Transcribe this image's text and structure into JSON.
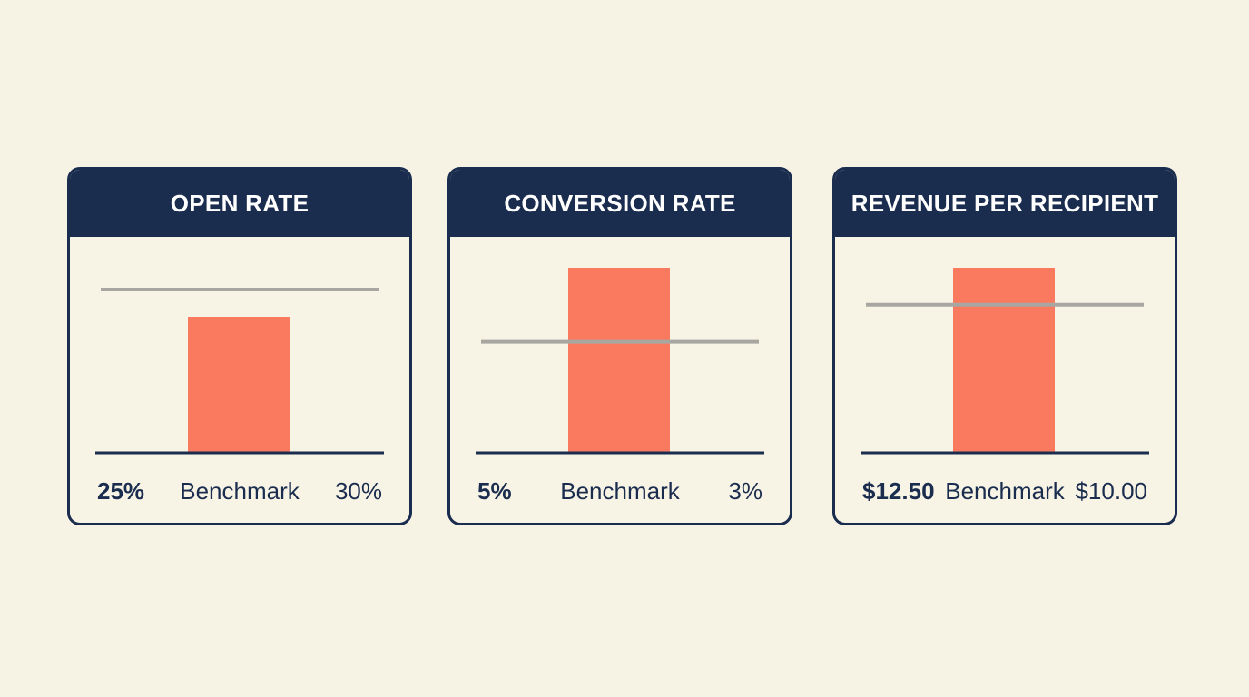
{
  "colors": {
    "background": "#f7f3e4",
    "header": "#1b2d4f",
    "bar": "#fa7a60",
    "benchmark_line": "#a7a6a1",
    "baseline": "#1b2d4f"
  },
  "chart_data": [
    {
      "type": "bar",
      "title": "OPEN RATE",
      "categories": [
        ""
      ],
      "values": [
        25
      ],
      "benchmark": 30,
      "ylim": [
        0,
        34
      ],
      "actual_label": "25%",
      "benchmark_label": "Benchmark",
      "benchmark_value_label": "30%"
    },
    {
      "type": "bar",
      "title": "CONVERSION RATE",
      "categories": [
        ""
      ],
      "values": [
        5
      ],
      "benchmark": 3,
      "ylim": [
        0,
        5
      ],
      "actual_label": "5%",
      "benchmark_label": "Benchmark",
      "benchmark_value_label": "3%"
    },
    {
      "type": "bar",
      "title": "REVENUE PER RECIPIENT",
      "categories": [
        ""
      ],
      "values": [
        12.5
      ],
      "benchmark": 10,
      "ylim": [
        0,
        12.5
      ],
      "actual_label": "$12.50",
      "benchmark_label": "Benchmark",
      "benchmark_value_label": "$10.00"
    }
  ]
}
